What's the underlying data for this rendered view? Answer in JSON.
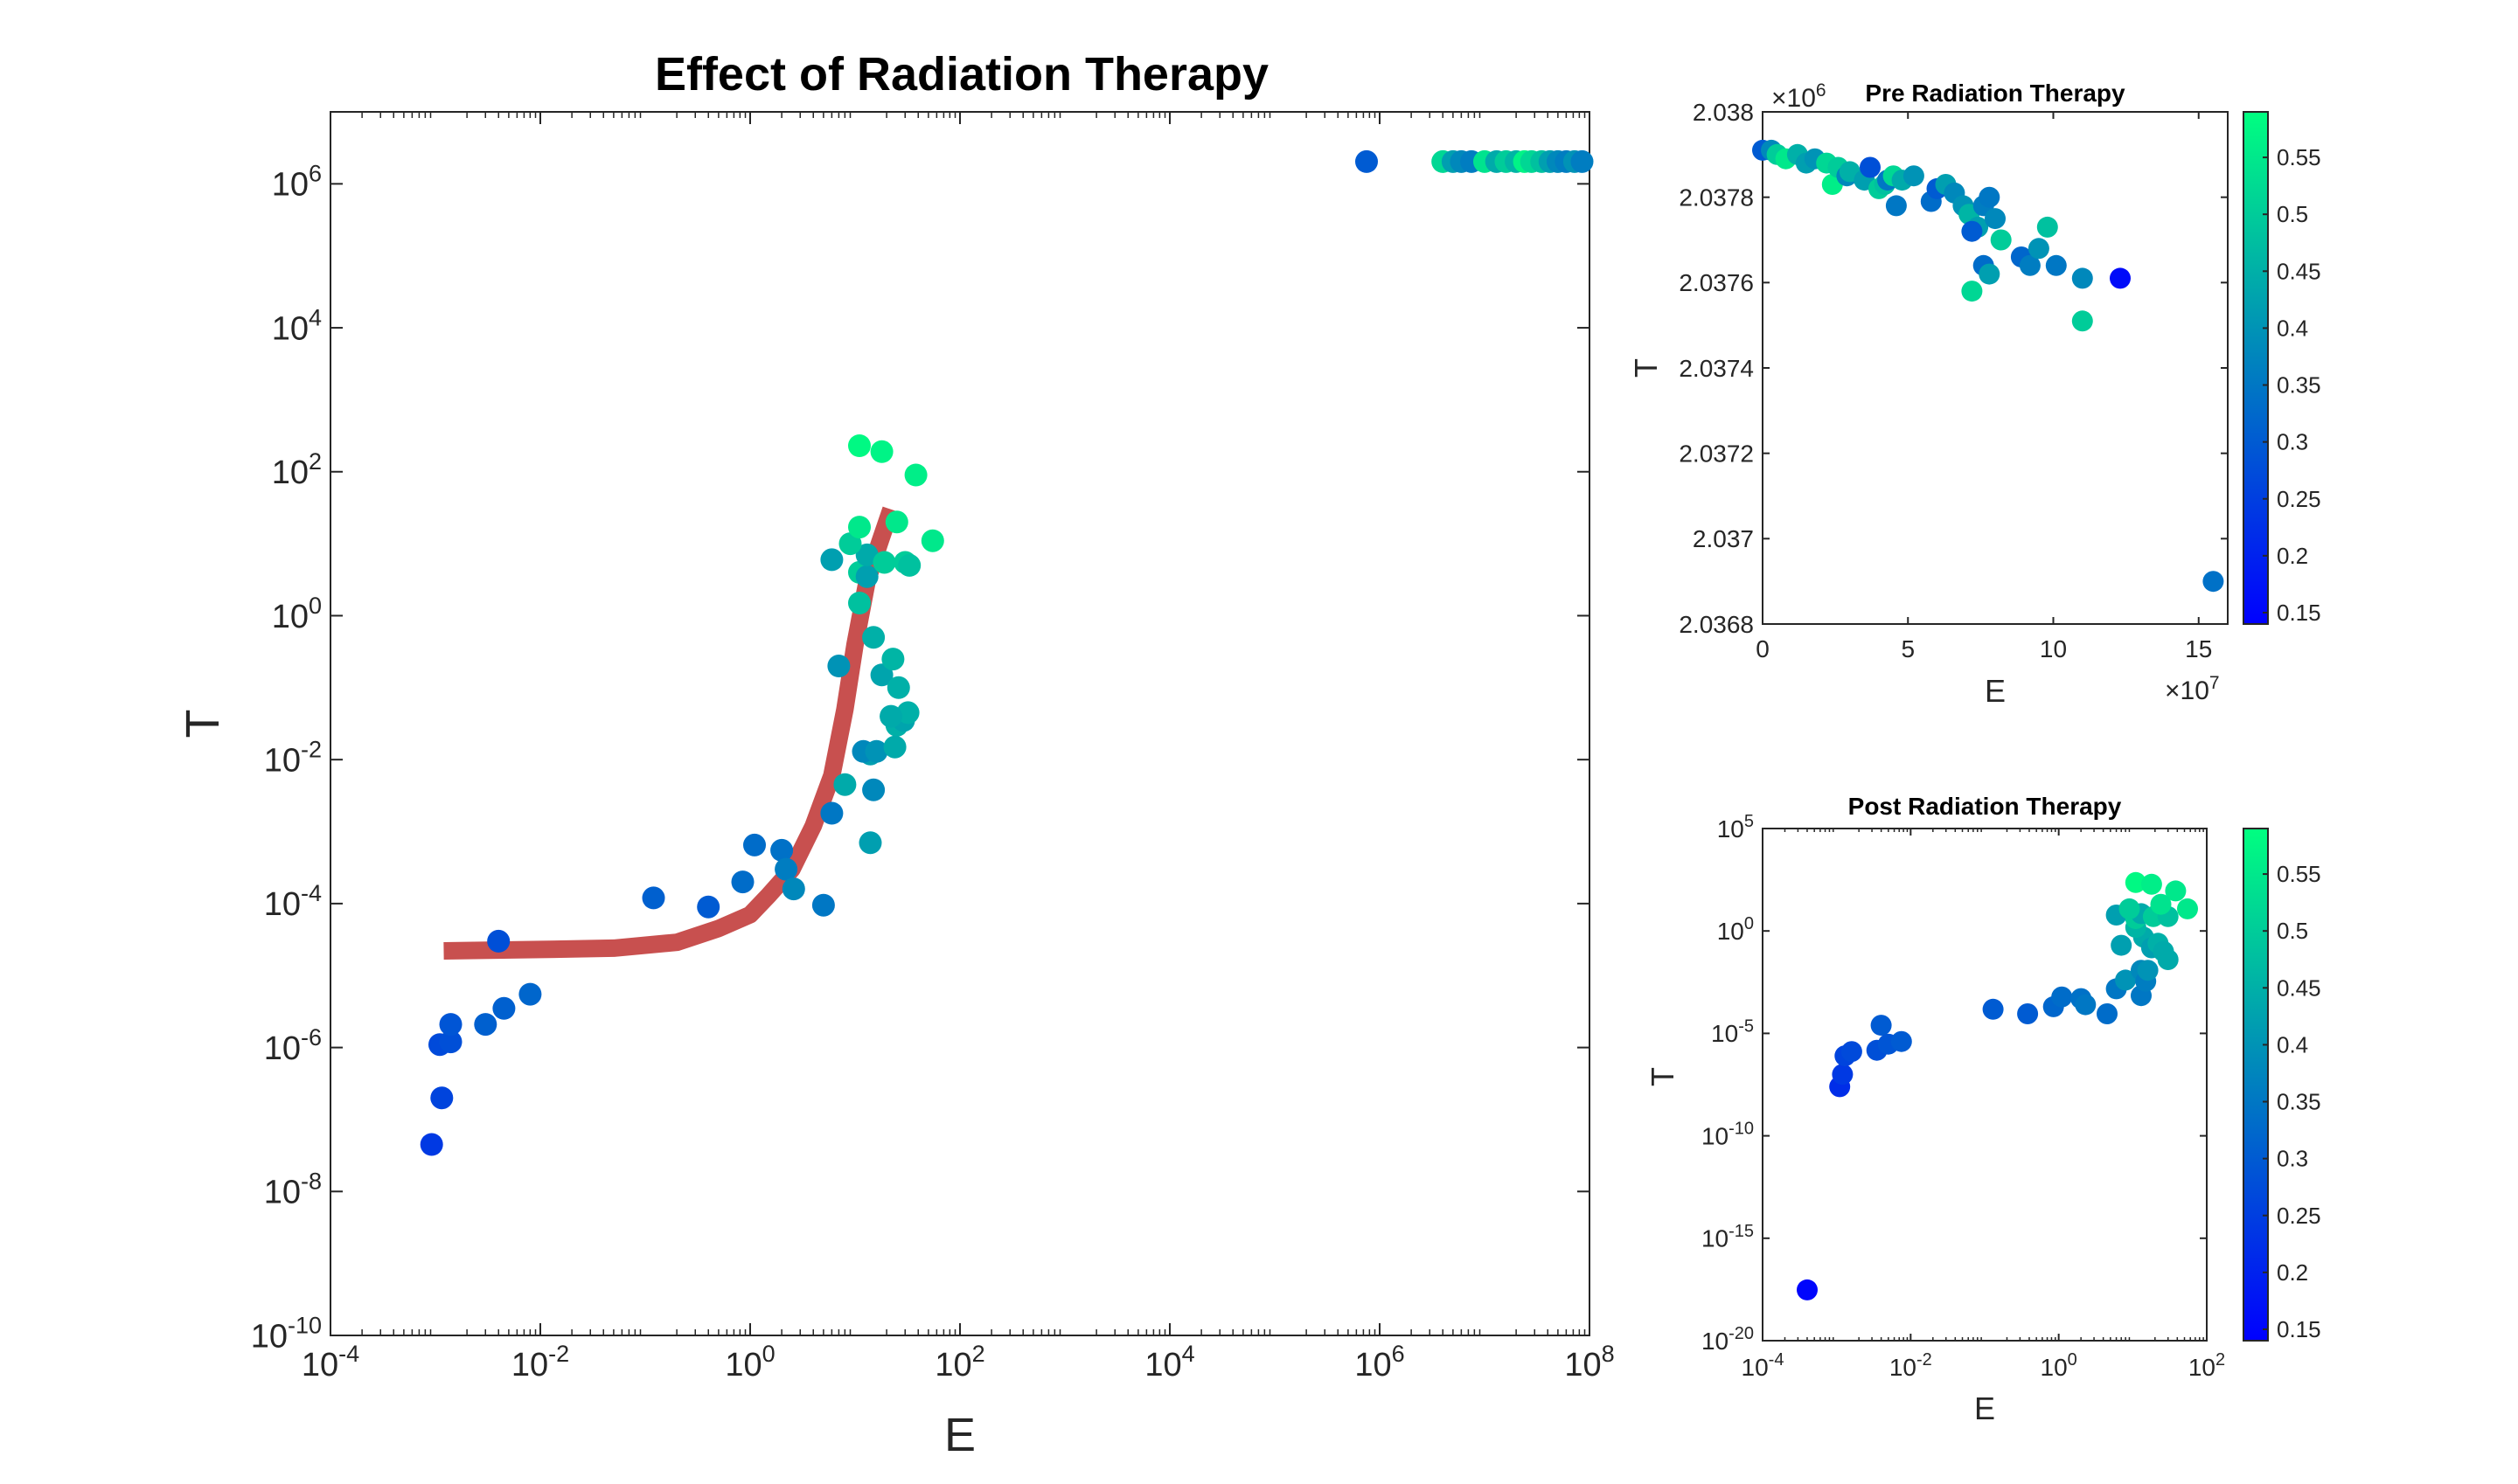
{
  "chart_data": [
    {
      "id": "main",
      "type": "scatter",
      "title": "Effect of Radiation Therapy",
      "xlabel": "E",
      "ylabel": "T",
      "xscale": "log",
      "yscale": "log",
      "xlim": [
        0.0001,
        100000000
      ],
      "ylim": [
        1e-10,
        10000000
      ],
      "xticks": [
        {
          "v": 0.0001,
          "b": "10",
          "e": "-4"
        },
        {
          "v": 0.01,
          "b": "10",
          "e": "-2"
        },
        {
          "v": 1,
          "b": "10",
          "e": "0"
        },
        {
          "v": 100,
          "b": "10",
          "e": "2"
        },
        {
          "v": 10000,
          "b": "10",
          "e": "4"
        },
        {
          "v": 1000000,
          "b": "10",
          "e": "6"
        },
        {
          "v": 100000000,
          "b": "10",
          "e": "8"
        }
      ],
      "yticks": [
        {
          "v": 1e-10,
          "b": "10",
          "e": "-10"
        },
        {
          "v": 1e-08,
          "b": "10",
          "e": "-8"
        },
        {
          "v": 1e-06,
          "b": "10",
          "e": "-6"
        },
        {
          "v": 0.0001,
          "b": "10",
          "e": "-4"
        },
        {
          "v": 0.01,
          "b": "10",
          "e": "-2"
        },
        {
          "v": 1,
          "b": "10",
          "e": "0"
        },
        {
          "v": 100,
          "b": "10",
          "e": "2"
        },
        {
          "v": 10000,
          "b": "10",
          "e": "4"
        },
        {
          "v": 1000000,
          "b": "10",
          "e": "6"
        }
      ],
      "grid": false,
      "fit_line": {
        "color": "#c8504f",
        "points": [
          [
            0.0012,
            2.2e-05
          ],
          [
            0.01,
            2.3e-05
          ],
          [
            0.05,
            2.4e-05
          ],
          [
            0.2,
            2.9e-05
          ],
          [
            0.5,
            4.5e-05
          ],
          [
            1,
            7e-05
          ],
          [
            1.5,
            0.00013
          ],
          [
            2.5,
            0.0003
          ],
          [
            4,
            0.0012
          ],
          [
            6,
            0.006
          ],
          [
            8,
            0.05
          ],
          [
            10,
            0.4
          ],
          [
            13,
            3
          ],
          [
            17,
            10
          ],
          [
            22,
            30
          ]
        ]
      },
      "points": [
        [
          0.00092,
          4.5e-08,
          0.24
        ],
        [
          0.00115,
          2e-07,
          0.26
        ],
        [
          0.0011,
          1.1e-06,
          0.27
        ],
        [
          0.0014,
          1.2e-06,
          0.28
        ],
        [
          0.0014,
          2.1e-06,
          0.29
        ],
        [
          0.003,
          2.1e-06,
          0.31
        ],
        [
          0.0045,
          3.5e-06,
          0.31
        ],
        [
          0.008,
          5.5e-06,
          0.32
        ],
        [
          0.004,
          3e-05,
          0.28
        ],
        [
          0.12,
          0.00012,
          0.31
        ],
        [
          0.4,
          9e-05,
          0.3
        ],
        [
          1.1,
          0.00065,
          0.33
        ],
        [
          0.85,
          0.0002,
          0.33
        ],
        [
          2,
          0.00055,
          0.34
        ],
        [
          2.2,
          0.0003,
          0.36
        ],
        [
          2.6,
          0.00016,
          0.38
        ],
        [
          5,
          9.5e-05,
          0.35
        ],
        [
          6,
          0.0018,
          0.35
        ],
        [
          8,
          0.0045,
          0.44
        ],
        [
          14,
          0.0007,
          0.42
        ],
        [
          14,
          0.012,
          0.42
        ],
        [
          12,
          0.013,
          0.38
        ],
        [
          16,
          0.013,
          0.4
        ],
        [
          15,
          0.0038,
          0.38
        ],
        [
          7,
          0.2,
          0.4
        ],
        [
          18,
          0.15,
          0.43
        ],
        [
          15,
          0.5,
          0.45
        ],
        [
          23,
          0.25,
          0.46
        ],
        [
          26,
          0.1,
          0.45
        ],
        [
          25,
          0.03,
          0.45
        ],
        [
          29,
          0.035,
          0.43
        ],
        [
          32,
          0.045,
          0.45
        ],
        [
          22,
          0.04,
          0.44
        ],
        [
          24,
          0.015,
          0.44
        ],
        [
          6,
          6,
          0.42
        ],
        [
          11,
          1.5,
          0.48
        ],
        [
          11,
          4,
          0.5
        ],
        [
          13,
          3.5,
          0.42
        ],
        [
          13,
          7,
          0.44
        ],
        [
          9,
          10,
          0.5
        ],
        [
          11,
          17,
          0.55
        ],
        [
          19,
          5.5,
          0.5
        ],
        [
          25,
          20,
          0.55
        ],
        [
          30,
          5.5,
          0.5
        ],
        [
          33,
          5,
          0.48
        ],
        [
          55,
          11,
          0.55
        ],
        [
          11,
          230,
          0.58
        ],
        [
          18,
          190,
          0.57
        ],
        [
          38,
          90,
          0.56
        ],
        [
          750000,
          2037600,
          0.3
        ],
        [
          4000000,
          2037900,
          0.52
        ],
        [
          5000000,
          2037900,
          0.42
        ],
        [
          6000000,
          2037850,
          0.38
        ],
        [
          7500000,
          2037800,
          0.36
        ],
        [
          10000000,
          2037800,
          0.54
        ],
        [
          13000000,
          2037750,
          0.44
        ],
        [
          16000000,
          2037700,
          0.5
        ],
        [
          20000000,
          2037750,
          0.46
        ],
        [
          24000000,
          2037650,
          0.57
        ],
        [
          28000000,
          2037650,
          0.52
        ],
        [
          35000000,
          2037700,
          0.48
        ],
        [
          42000000,
          2037600,
          0.42
        ],
        [
          50000000,
          2037650,
          0.38
        ],
        [
          60000000,
          2037500,
          0.36
        ],
        [
          72000000,
          2037550,
          0.4
        ],
        [
          85000000,
          2037600,
          0.36
        ]
      ]
    },
    {
      "id": "pre",
      "type": "scatter",
      "title": "Pre Radiation Therapy",
      "xlabel": "E",
      "ylabel": "T",
      "xlim": [
        0,
        16
      ],
      "ylim": [
        2.0368,
        2.038
      ],
      "xticks": [
        {
          "v": 0,
          "t": "0"
        },
        {
          "v": 5,
          "t": "5"
        },
        {
          "v": 10,
          "t": "10"
        },
        {
          "v": 15,
          "t": "15"
        }
      ],
      "yticks": [
        {
          "v": 2.0368,
          "t": "2.0368"
        },
        {
          "v": 2.037,
          "t": "2.037"
        },
        {
          "v": 2.0372,
          "t": "2.0372"
        },
        {
          "v": 2.0374,
          "t": "2.0374"
        },
        {
          "v": 2.0376,
          "t": "2.0376"
        },
        {
          "v": 2.0378,
          "t": "2.0378"
        },
        {
          "v": 2.038,
          "t": "2.038"
        }
      ],
      "x_multiplier": {
        "b": "×10",
        "e": "7"
      },
      "y_multiplier": {
        "b": "×10",
        "e": "6"
      },
      "colorbar": {
        "ticks": [
          "0.15",
          "0.2",
          "0.25",
          "0.3",
          "0.35",
          "0.4",
          "0.45",
          "0.5",
          "0.55"
        ],
        "tick_values": [
          0.15,
          0.2,
          0.25,
          0.3,
          0.35,
          0.4,
          0.45,
          0.5,
          0.55
        ]
      },
      "points": [
        [
          0.0,
          2.03791,
          0.3
        ],
        [
          0.3,
          2.03791,
          0.38
        ],
        [
          0.5,
          2.0379,
          0.5
        ],
        [
          0.8,
          2.03789,
          0.55
        ],
        [
          1.2,
          2.0379,
          0.45
        ],
        [
          1.5,
          2.03788,
          0.42
        ],
        [
          1.8,
          2.03789,
          0.4
        ],
        [
          2.2,
          2.03788,
          0.52
        ],
        [
          2.4,
          2.03783,
          0.56
        ],
        [
          2.6,
          2.03787,
          0.5
        ],
        [
          2.9,
          2.03785,
          0.38
        ],
        [
          3.0,
          2.03786,
          0.45
        ],
        [
          3.5,
          2.03784,
          0.42
        ],
        [
          3.7,
          2.03787,
          0.28
        ],
        [
          4.0,
          2.03782,
          0.5
        ],
        [
          4.2,
          2.03783,
          0.48
        ],
        [
          4.3,
          2.03784,
          0.35
        ],
        [
          4.5,
          2.03785,
          0.52
        ],
        [
          4.8,
          2.03784,
          0.44
        ],
        [
          4.6,
          2.03778,
          0.35
        ],
        [
          5.2,
          2.03785,
          0.4
        ],
        [
          5.8,
          2.03779,
          0.33
        ],
        [
          6.0,
          2.03782,
          0.3
        ],
        [
          6.3,
          2.03783,
          0.42
        ],
        [
          6.6,
          2.03781,
          0.38
        ],
        [
          6.9,
          2.03778,
          0.4
        ],
        [
          7.1,
          2.03776,
          0.46
        ],
        [
          7.4,
          2.03773,
          0.42
        ],
        [
          7.2,
          2.03772,
          0.3
        ],
        [
          7.6,
          2.03778,
          0.36
        ],
        [
          7.8,
          2.0378,
          0.35
        ],
        [
          8.0,
          2.03775,
          0.38
        ],
        [
          7.6,
          2.03764,
          0.33
        ],
        [
          7.8,
          2.03762,
          0.42
        ],
        [
          8.2,
          2.0377,
          0.5
        ],
        [
          8.9,
          2.03766,
          0.32
        ],
        [
          9.2,
          2.03764,
          0.36
        ],
        [
          9.5,
          2.03768,
          0.4
        ],
        [
          9.8,
          2.03773,
          0.48
        ],
        [
          10.1,
          2.03764,
          0.35
        ],
        [
          11.0,
          2.03761,
          0.38
        ],
        [
          7.2,
          2.03758,
          0.52
        ],
        [
          11.0,
          2.03751,
          0.5
        ],
        [
          12.3,
          2.03761,
          0.16
        ],
        [
          15.5,
          2.0369,
          0.34
        ]
      ]
    },
    {
      "id": "post",
      "type": "scatter",
      "title": "Post Radiation Therapy",
      "xlabel": "E",
      "ylabel": "T",
      "xscale": "log",
      "yscale": "log",
      "xlim": [
        0.0001,
        100
      ],
      "ylim": [
        1e-20,
        100000
      ],
      "xticks": [
        {
          "v": 0.0001,
          "b": "10",
          "e": "-4"
        },
        {
          "v": 0.01,
          "b": "10",
          "e": "-2"
        },
        {
          "v": 1,
          "b": "10",
          "e": "0"
        },
        {
          "v": 100,
          "b": "10",
          "e": "2"
        }
      ],
      "yticks": [
        {
          "v": 1e-20,
          "b": "10",
          "e": "-20"
        },
        {
          "v": 1e-15,
          "b": "10",
          "e": "-15"
        },
        {
          "v": 1e-10,
          "b": "10",
          "e": "-10"
        },
        {
          "v": 1e-05,
          "b": "10",
          "e": "-5"
        },
        {
          "v": 1,
          "b": "10",
          "e": "0"
        },
        {
          "v": 100000,
          "b": "10",
          "e": "5"
        }
      ],
      "colorbar": {
        "ticks": [
          "0.15",
          "0.2",
          "0.25",
          "0.3",
          "0.35",
          "0.4",
          "0.45",
          "0.5",
          "0.55"
        ],
        "tick_values": [
          0.15,
          0.2,
          0.25,
          0.3,
          0.35,
          0.4,
          0.45,
          0.5,
          0.55
        ]
      },
      "points": [
        [
          0.0004,
          3e-18,
          0.15
        ],
        [
          0.0011,
          2.5e-08,
          0.22
        ],
        [
          0.0012,
          1e-07,
          0.24
        ],
        [
          0.0013,
          8e-07,
          0.26
        ],
        [
          0.0016,
          1.3e-06,
          0.27
        ],
        [
          0.0035,
          1.5e-06,
          0.28
        ],
        [
          0.004,
          2.5e-05,
          0.3
        ],
        [
          0.005,
          3e-06,
          0.29
        ],
        [
          0.0075,
          4e-06,
          0.3
        ],
        [
          0.13,
          0.00015,
          0.3
        ],
        [
          0.38,
          9e-05,
          0.3
        ],
        [
          0.85,
          0.0002,
          0.32
        ],
        [
          1.1,
          0.0006,
          0.33
        ],
        [
          2,
          0.0005,
          0.34
        ],
        [
          2.3,
          0.00025,
          0.35
        ],
        [
          4.5,
          9e-05,
          0.33
        ],
        [
          6,
          0.0015,
          0.35
        ],
        [
          8,
          0.004,
          0.4
        ],
        [
          13,
          0.0007,
          0.35
        ],
        [
          13,
          0.012,
          0.38
        ],
        [
          15,
          0.0035,
          0.36
        ],
        [
          16,
          0.012,
          0.4
        ],
        [
          7,
          0.2,
          0.42
        ],
        [
          14,
          0.5,
          0.44
        ],
        [
          18,
          0.15,
          0.42
        ],
        [
          22,
          0.25,
          0.45
        ],
        [
          26,
          0.1,
          0.44
        ],
        [
          30,
          0.04,
          0.44
        ],
        [
          6,
          6,
          0.42
        ],
        [
          11,
          1.5,
          0.46
        ],
        [
          11,
          4,
          0.5
        ],
        [
          13,
          7,
          0.44
        ],
        [
          9,
          12,
          0.5
        ],
        [
          19,
          5,
          0.5
        ],
        [
          30,
          5,
          0.48
        ],
        [
          55,
          12,
          0.55
        ],
        [
          11,
          230,
          0.58
        ],
        [
          18,
          190,
          0.56
        ],
        [
          38,
          90,
          0.55
        ],
        [
          24,
          20,
          0.54
        ]
      ]
    }
  ]
}
